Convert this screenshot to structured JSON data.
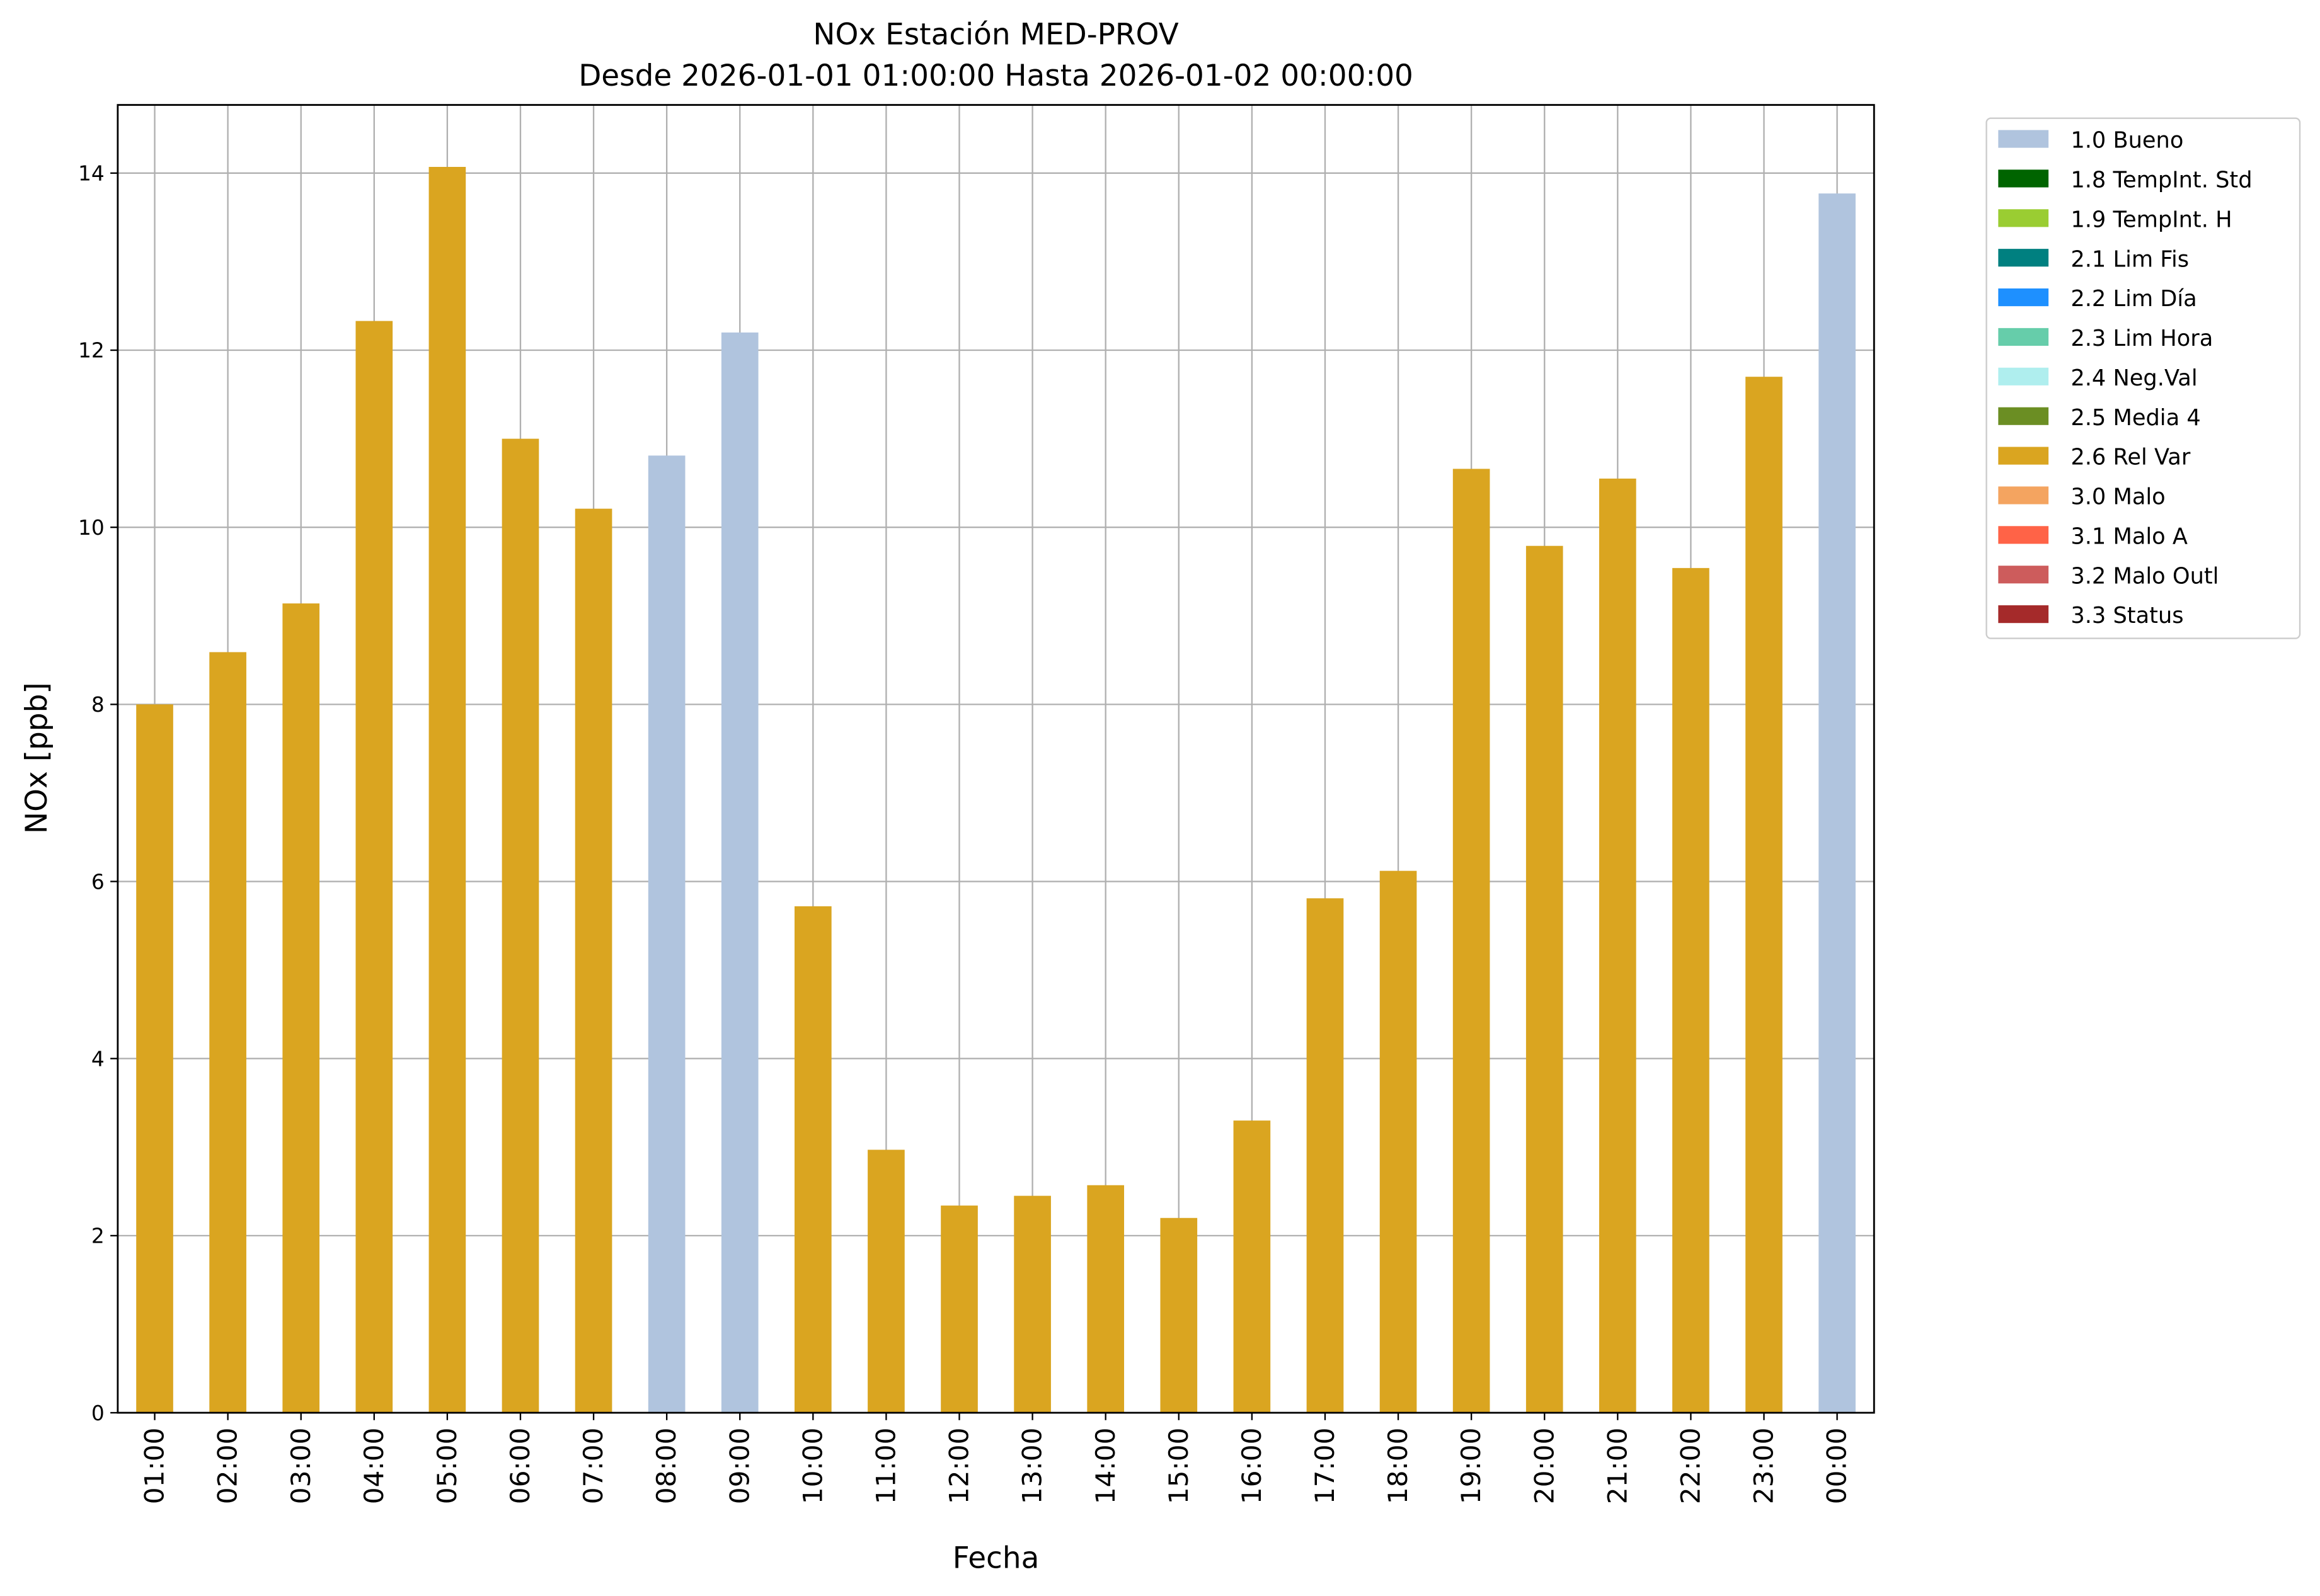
{
  "chart_data": {
    "type": "bar",
    "title": "NOx Estación MED-PROV",
    "subtitle": "Desde 2026-01-01 01:00:00 Hasta 2026-01-02 00:00:00",
    "xlabel": "Fecha",
    "ylabel": "NOx [ppb]",
    "ylim": [
      0,
      14.77
    ],
    "yticks": [
      0,
      2,
      4,
      6,
      8,
      10,
      12,
      14
    ],
    "grid": true,
    "legend_position": "outside-top-right",
    "categories": [
      "01:00",
      "02:00",
      "03:00",
      "04:00",
      "05:00",
      "06:00",
      "07:00",
      "08:00",
      "09:00",
      "10:00",
      "11:00",
      "12:00",
      "13:00",
      "14:00",
      "15:00",
      "16:00",
      "17:00",
      "18:00",
      "19:00",
      "20:00",
      "21:00",
      "22:00",
      "23:00",
      "00:00"
    ],
    "values": [
      8.0,
      8.59,
      9.14,
      12.33,
      14.07,
      11.0,
      10.21,
      10.81,
      12.2,
      5.72,
      2.97,
      2.34,
      2.45,
      2.57,
      2.2,
      3.3,
      5.81,
      6.12,
      10.66,
      9.79,
      10.55,
      9.54,
      11.7,
      13.77
    ],
    "flags": [
      "2.6 Rel Var",
      "2.6 Rel Var",
      "2.6 Rel Var",
      "2.6 Rel Var",
      "2.6 Rel Var",
      "2.6 Rel Var",
      "2.6 Rel Var",
      "1.0 Bueno",
      "1.0 Bueno",
      "2.6 Rel Var",
      "2.6 Rel Var",
      "2.6 Rel Var",
      "2.6 Rel Var",
      "2.6 Rel Var",
      "2.6 Rel Var",
      "2.6 Rel Var",
      "2.6 Rel Var",
      "2.6 Rel Var",
      "2.6 Rel Var",
      "2.6 Rel Var",
      "2.6 Rel Var",
      "2.6 Rel Var",
      "2.6 Rel Var",
      "1.0 Bueno"
    ],
    "legend": [
      {
        "label": "1.0 Bueno",
        "color": "#b0c4de"
      },
      {
        "label": "1.8 TempInt. Std",
        "color": "#006400"
      },
      {
        "label": "1.9 TempInt. H",
        "color": "#9acd32"
      },
      {
        "label": "2.1 Lim Fis",
        "color": "#008080"
      },
      {
        "label": "2.2 Lim Día",
        "color": "#1e90ff"
      },
      {
        "label": "2.3 Lim Hora",
        "color": "#66cdaa"
      },
      {
        "label": "2.4 Neg.Val",
        "color": "#afeeee"
      },
      {
        "label": "2.5 Media 4",
        "color": "#6b8e23"
      },
      {
        "label": "2.6 Rel Var",
        "color": "#daa520"
      },
      {
        "label": "3.0 Malo",
        "color": "#f4a460"
      },
      {
        "label": "3.1 Malo A",
        "color": "#ff6347"
      },
      {
        "label": "3.2 Malo Outl",
        "color": "#cd5c5c"
      },
      {
        "label": "3.3 Status",
        "color": "#a52a2a"
      }
    ]
  }
}
